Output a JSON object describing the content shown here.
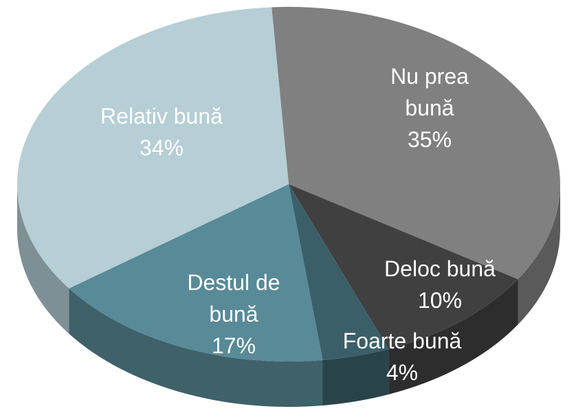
{
  "chart_data": {
    "type": "pie",
    "categories": [
      "Nu prea bună",
      "Deloc bună",
      "Foarte bună",
      "Destul de bună",
      "Relativ bună"
    ],
    "values": [
      35,
      10,
      4,
      17,
      34
    ],
    "value_labels": [
      "35%",
      "10%",
      "4%",
      "17%",
      "34%"
    ],
    "colors": [
      "#808080",
      "#404040",
      "#3b5f69",
      "#588a98",
      "#b6ced5"
    ]
  }
}
